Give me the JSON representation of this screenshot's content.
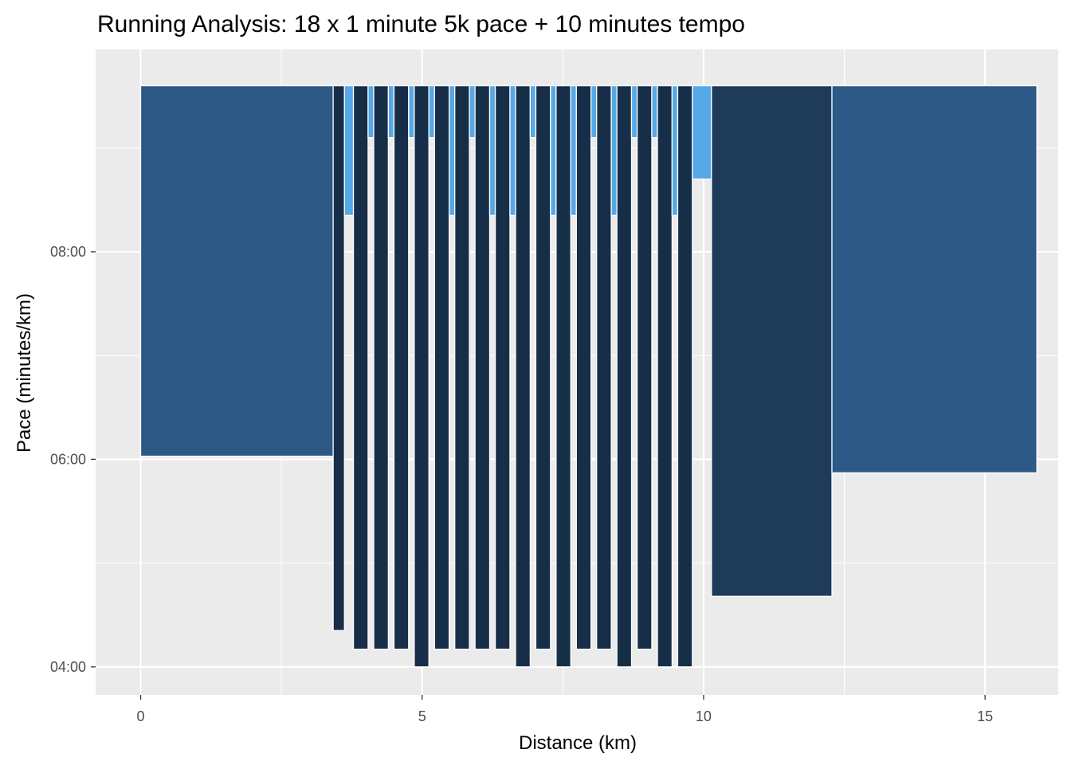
{
  "chart_data": {
    "type": "bar",
    "title": "Running Analysis: 18 x 1 minute 5k pace + 10 minutes tempo",
    "xlabel": "Distance (km)",
    "ylabel": "Pace (minutes/km)",
    "xlim": [
      -0.8,
      16.3
    ],
    "ylim_minutes": [
      3.73,
      9.95
    ],
    "bar_top_minutes": 9.6,
    "x_ticks": [
      {
        "value": 0,
        "label": "0"
      },
      {
        "value": 5,
        "label": "5"
      },
      {
        "value": 10,
        "label": "10"
      },
      {
        "value": 15,
        "label": "15"
      }
    ],
    "y_ticks": [
      {
        "value": 4,
        "label": "04:00"
      },
      {
        "value": 6,
        "label": "06:00"
      },
      {
        "value": 8,
        "label": "08:00"
      }
    ],
    "grid": true,
    "legend": "none",
    "colors": {
      "warmup": "#2c5985",
      "tempo": "#1e3b59",
      "interval": "#172e48",
      "recovery": "#56a8e7",
      "panel": "#ebebeb",
      "grid": "#ffffff"
    },
    "segments": [
      {
        "start": 0.0,
        "end": 3.42,
        "pace": 6.03,
        "type": "warmup"
      },
      {
        "start": 3.42,
        "end": 3.62,
        "pace": 4.35,
        "type": "interval"
      },
      {
        "start": 3.62,
        "end": 3.78,
        "pace": 8.35,
        "type": "recovery"
      },
      {
        "start": 3.78,
        "end": 4.04,
        "pace": 4.17,
        "type": "interval"
      },
      {
        "start": 4.04,
        "end": 4.14,
        "pace": 9.1,
        "type": "recovery"
      },
      {
        "start": 4.14,
        "end": 4.4,
        "pace": 4.17,
        "type": "interval"
      },
      {
        "start": 4.4,
        "end": 4.5,
        "pace": 9.1,
        "type": "recovery"
      },
      {
        "start": 4.5,
        "end": 4.76,
        "pace": 4.17,
        "type": "interval"
      },
      {
        "start": 4.76,
        "end": 4.86,
        "pace": 9.1,
        "type": "recovery"
      },
      {
        "start": 4.86,
        "end": 5.12,
        "pace": 4.0,
        "type": "interval"
      },
      {
        "start": 5.12,
        "end": 5.22,
        "pace": 9.1,
        "type": "recovery"
      },
      {
        "start": 5.22,
        "end": 5.48,
        "pace": 4.17,
        "type": "interval"
      },
      {
        "start": 5.48,
        "end": 5.58,
        "pace": 8.35,
        "type": "recovery"
      },
      {
        "start": 5.58,
        "end": 5.84,
        "pace": 4.17,
        "type": "interval"
      },
      {
        "start": 5.84,
        "end": 5.94,
        "pace": 9.1,
        "type": "recovery"
      },
      {
        "start": 5.94,
        "end": 6.2,
        "pace": 4.17,
        "type": "interval"
      },
      {
        "start": 6.2,
        "end": 6.3,
        "pace": 8.35,
        "type": "recovery"
      },
      {
        "start": 6.3,
        "end": 6.56,
        "pace": 4.17,
        "type": "interval"
      },
      {
        "start": 6.56,
        "end": 6.66,
        "pace": 8.35,
        "type": "recovery"
      },
      {
        "start": 6.66,
        "end": 6.92,
        "pace": 4.0,
        "type": "interval"
      },
      {
        "start": 6.92,
        "end": 7.02,
        "pace": 9.1,
        "type": "recovery"
      },
      {
        "start": 7.02,
        "end": 7.28,
        "pace": 4.17,
        "type": "interval"
      },
      {
        "start": 7.28,
        "end": 7.38,
        "pace": 8.35,
        "type": "recovery"
      },
      {
        "start": 7.38,
        "end": 7.64,
        "pace": 4.0,
        "type": "interval"
      },
      {
        "start": 7.64,
        "end": 7.74,
        "pace": 8.35,
        "type": "recovery"
      },
      {
        "start": 7.74,
        "end": 8.0,
        "pace": 4.17,
        "type": "interval"
      },
      {
        "start": 8.0,
        "end": 8.1,
        "pace": 9.1,
        "type": "recovery"
      },
      {
        "start": 8.1,
        "end": 8.36,
        "pace": 4.17,
        "type": "interval"
      },
      {
        "start": 8.36,
        "end": 8.46,
        "pace": 8.35,
        "type": "recovery"
      },
      {
        "start": 8.46,
        "end": 8.72,
        "pace": 4.0,
        "type": "interval"
      },
      {
        "start": 8.72,
        "end": 8.82,
        "pace": 9.1,
        "type": "recovery"
      },
      {
        "start": 8.82,
        "end": 9.08,
        "pace": 4.17,
        "type": "interval"
      },
      {
        "start": 9.08,
        "end": 9.18,
        "pace": 9.1,
        "type": "recovery"
      },
      {
        "start": 9.18,
        "end": 9.44,
        "pace": 4.0,
        "type": "interval"
      },
      {
        "start": 9.44,
        "end": 9.54,
        "pace": 8.35,
        "type": "recovery"
      },
      {
        "start": 9.54,
        "end": 9.8,
        "pace": 4.0,
        "type": "interval"
      },
      {
        "start": 9.8,
        "end": 10.14,
        "pace": 8.7,
        "type": "recovery"
      },
      {
        "start": 10.14,
        "end": 12.28,
        "pace": 4.68,
        "type": "tempo"
      },
      {
        "start": 12.28,
        "end": 15.92,
        "pace": 5.87,
        "type": "warmup"
      }
    ]
  }
}
